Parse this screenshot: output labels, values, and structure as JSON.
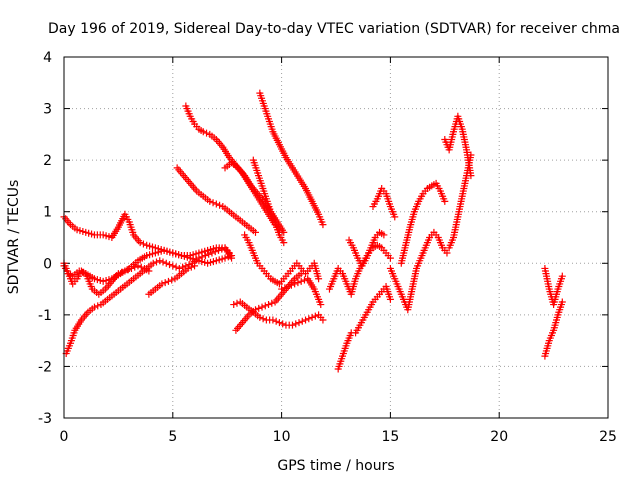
{
  "chart_data": {
    "type": "scatter",
    "title": "Day 196 of 2019, Sidereal Day-to-day VTEC variation (SDTVAR) for receiver chma",
    "xlabel": "GPS time / hours",
    "ylabel": "SDTVAR / TECUs",
    "xlim": [
      0,
      25
    ],
    "ylim": [
      -3,
      4
    ],
    "xticks": [
      0,
      5,
      10,
      15,
      20,
      25
    ],
    "yticks": [
      -3,
      -2,
      -1,
      0,
      1,
      2,
      3,
      4
    ],
    "grid": true,
    "marker": "plus",
    "color": "#ff0000",
    "series": [
      {
        "x": [
          0.0,
          0.3,
          0.6,
          1.0,
          1.4,
          1.8,
          2.2,
          2.5,
          2.8,
          3.0,
          3.2,
          3.5,
          3.8,
          4.2,
          4.6,
          5.0,
          5.4,
          5.8,
          6.2,
          6.6,
          7.0,
          7.4,
          7.7
        ],
        "y": [
          0.9,
          0.75,
          0.65,
          0.6,
          0.55,
          0.55,
          0.5,
          0.7,
          0.95,
          0.8,
          0.55,
          0.4,
          0.35,
          0.3,
          0.25,
          0.2,
          0.15,
          0.15,
          0.2,
          0.25,
          0.3,
          0.3,
          0.1
        ]
      },
      {
        "x": [
          0.0,
          0.2,
          0.4,
          0.7,
          1.0,
          1.4,
          1.8,
          2.2,
          2.6,
          3.0,
          3.4,
          3.8,
          4.2,
          4.6,
          5.0,
          5.4,
          5.8,
          6.2,
          6.6,
          7.0,
          7.4,
          7.7
        ],
        "y": [
          0.0,
          -0.2,
          -0.25,
          -0.15,
          -0.2,
          -0.3,
          -0.35,
          -0.3,
          -0.2,
          -0.1,
          0.05,
          0.15,
          0.2,
          0.25,
          0.2,
          0.15,
          0.1,
          0.05,
          0.0,
          0.05,
          0.1,
          0.15
        ]
      },
      {
        "x": [
          0.0,
          0.2,
          0.4,
          0.6,
          0.8,
          1.0,
          1.3,
          1.6,
          1.9,
          2.2,
          2.5,
          2.8,
          3.1,
          3.4,
          3.7,
          3.9
        ],
        "y": [
          -0.05,
          -0.2,
          -0.4,
          -0.3,
          -0.15,
          -0.2,
          -0.5,
          -0.6,
          -0.5,
          -0.35,
          -0.2,
          -0.15,
          -0.1,
          -0.05,
          -0.1,
          -0.15
        ]
      },
      {
        "x": [
          0.1,
          0.3,
          0.5,
          0.8,
          1.1,
          1.4,
          1.7,
          2.0,
          2.3,
          2.6,
          2.9,
          3.2,
          3.5,
          3.8,
          4.1,
          4.4,
          4.7,
          5.0,
          5.3,
          5.6,
          5.9,
          6.2,
          6.5,
          6.8,
          7.1,
          7.4,
          7.6
        ],
        "y": [
          -1.75,
          -1.55,
          -1.3,
          -1.1,
          -0.95,
          -0.85,
          -0.8,
          -0.7,
          -0.6,
          -0.5,
          -0.4,
          -0.3,
          -0.2,
          -0.1,
          0.0,
          0.05,
          0.0,
          -0.05,
          -0.1,
          -0.05,
          0.0,
          0.1,
          0.15,
          0.2,
          0.25,
          0.3,
          0.2
        ]
      },
      {
        "x": [
          3.9,
          4.2,
          4.5,
          4.8,
          5.1,
          5.4,
          5.7,
          6.0
        ],
        "y": [
          -0.6,
          -0.5,
          -0.4,
          -0.35,
          -0.3,
          -0.2,
          -0.1,
          -0.05
        ]
      },
      {
        "x": [
          5.6,
          5.8,
          6.0,
          6.2,
          6.4,
          6.7,
          7.0,
          7.3,
          7.6,
          7.9,
          8.2,
          8.5,
          8.8,
          9.1,
          9.4,
          9.7,
          9.9
        ],
        "y": [
          3.05,
          2.85,
          2.7,
          2.6,
          2.55,
          2.5,
          2.4,
          2.25,
          2.05,
          1.9,
          1.75,
          1.55,
          1.35,
          1.15,
          0.95,
          0.75,
          0.6
        ]
      },
      {
        "x": [
          5.2,
          5.5,
          5.8,
          6.1,
          6.4,
          6.7,
          7.0,
          7.3,
          7.6,
          7.9,
          8.2,
          8.5,
          8.8
        ],
        "y": [
          1.85,
          1.7,
          1.55,
          1.4,
          1.3,
          1.2,
          1.15,
          1.1,
          1.0,
          0.9,
          0.8,
          0.7,
          0.6
        ]
      },
      {
        "x": [
          9.0,
          9.2,
          9.4,
          9.6,
          9.9,
          10.2,
          10.5,
          10.8,
          11.1,
          11.4,
          11.7,
          11.9
        ],
        "y": [
          3.3,
          3.05,
          2.8,
          2.55,
          2.3,
          2.05,
          1.85,
          1.65,
          1.45,
          1.2,
          0.95,
          0.75
        ]
      },
      {
        "x": [
          7.4,
          7.7,
          8.0,
          8.3,
          8.6,
          8.9,
          9.2,
          9.5,
          9.8,
          10.1
        ],
        "y": [
          1.85,
          1.95,
          1.85,
          1.7,
          1.5,
          1.35,
          1.2,
          1.0,
          0.8,
          0.6
        ]
      },
      {
        "x": [
          8.7,
          8.9,
          9.1,
          9.3,
          9.5,
          9.7,
          9.9,
          10.1
        ],
        "y": [
          2.0,
          1.75,
          1.5,
          1.25,
          1.0,
          0.8,
          0.55,
          0.4
        ]
      },
      {
        "x": [
          8.3,
          8.5,
          8.7,
          8.9,
          9.1,
          9.3,
          9.5,
          9.7,
          9.9,
          10.1,
          10.3,
          10.5,
          10.7,
          10.9,
          11.1,
          11.3,
          11.5,
          11.7
        ],
        "y": [
          0.55,
          0.4,
          0.2,
          0.0,
          -0.1,
          -0.2,
          -0.3,
          -0.35,
          -0.4,
          -0.3,
          -0.2,
          -0.1,
          0.0,
          -0.1,
          -0.2,
          -0.1,
          0.0,
          -0.3
        ]
      },
      {
        "x": [
          7.8,
          8.1,
          8.4,
          8.7,
          9.0,
          9.3,
          9.6,
          9.9,
          10.2,
          10.5,
          10.8,
          11.1,
          11.4,
          11.7,
          11.9
        ],
        "y": [
          -0.8,
          -0.75,
          -0.85,
          -0.95,
          -1.05,
          -1.1,
          -1.1,
          -1.15,
          -1.2,
          -1.2,
          -1.15,
          -1.1,
          -1.05,
          -1.0,
          -1.1
        ]
      },
      {
        "x": [
          7.9,
          8.2,
          8.5,
          8.8,
          9.1,
          9.4,
          9.7,
          10.0,
          10.3,
          10.6,
          10.9
        ],
        "y": [
          -1.3,
          -1.15,
          -1.0,
          -0.9,
          -0.85,
          -0.8,
          -0.75,
          -0.6,
          -0.45,
          -0.3,
          -0.2
        ]
      },
      {
        "x": [
          10.0,
          10.3,
          10.6,
          10.9,
          11.2,
          11.5,
          11.8
        ],
        "y": [
          -0.5,
          -0.45,
          -0.4,
          -0.35,
          -0.3,
          -0.5,
          -0.8
        ]
      },
      {
        "x": [
          12.6,
          12.8,
          13.0,
          13.2,
          13.4,
          13.6,
          13.8,
          14.0,
          14.2,
          14.4,
          14.6,
          14.8,
          15.0
        ],
        "y": [
          -2.05,
          -1.8,
          -1.55,
          -1.35,
          -1.35,
          -1.2,
          -1.05,
          -0.9,
          -0.75,
          -0.65,
          -0.55,
          -0.45,
          -0.7
        ]
      },
      {
        "x": [
          12.2,
          12.4,
          12.6,
          12.8,
          13.0,
          13.2,
          13.4,
          13.6,
          13.8,
          14.0,
          14.2,
          14.4,
          14.6,
          14.8,
          15.0
        ],
        "y": [
          -0.5,
          -0.3,
          -0.1,
          -0.2,
          -0.4,
          -0.6,
          -0.3,
          -0.1,
          0.05,
          0.2,
          0.3,
          0.35,
          0.3,
          0.2,
          0.1
        ]
      },
      {
        "x": [
          13.1,
          13.3,
          13.5,
          13.7,
          13.9,
          14.1,
          14.3,
          14.5,
          14.7
        ],
        "y": [
          0.45,
          0.3,
          0.1,
          -0.05,
          0.1,
          0.3,
          0.5,
          0.6,
          0.55
        ]
      },
      {
        "x": [
          14.2,
          14.4,
          14.6,
          14.8,
          15.0,
          15.2
        ],
        "y": [
          1.1,
          1.25,
          1.45,
          1.35,
          1.1,
          0.9
        ]
      },
      {
        "x": [
          15.0,
          15.2,
          15.4,
          15.6,
          15.8,
          16.0,
          16.2,
          16.4,
          16.6,
          16.8,
          17.0,
          17.2,
          17.4,
          17.6
        ],
        "y": [
          -0.1,
          -0.3,
          -0.5,
          -0.7,
          -0.9,
          -0.5,
          -0.1,
          0.1,
          0.3,
          0.5,
          0.6,
          0.5,
          0.3,
          0.2
        ]
      },
      {
        "x": [
          15.5,
          15.7,
          15.9,
          16.1,
          16.3,
          16.5,
          16.7,
          16.9,
          17.1,
          17.3,
          17.5
        ],
        "y": [
          0.0,
          0.35,
          0.7,
          1.0,
          1.2,
          1.35,
          1.45,
          1.5,
          1.55,
          1.4,
          1.2
        ]
      },
      {
        "x": [
          17.5,
          17.7,
          17.9,
          18.1,
          18.3,
          18.5,
          18.7
        ],
        "y": [
          2.4,
          2.2,
          2.55,
          2.85,
          2.6,
          2.2,
          1.7
        ]
      },
      {
        "x": [
          17.7,
          17.9,
          18.1,
          18.3,
          18.5,
          18.7
        ],
        "y": [
          0.3,
          0.5,
          0.9,
          1.3,
          1.7,
          2.1
        ]
      },
      {
        "x": [
          22.1,
          22.3,
          22.5,
          22.7,
          22.9
        ],
        "y": [
          -0.1,
          -0.5,
          -0.8,
          -0.5,
          -0.25
        ]
      },
      {
        "x": [
          22.1,
          22.3,
          22.5,
          22.7,
          22.9
        ],
        "y": [
          -1.8,
          -1.5,
          -1.3,
          -1.0,
          -0.75
        ]
      }
    ]
  }
}
